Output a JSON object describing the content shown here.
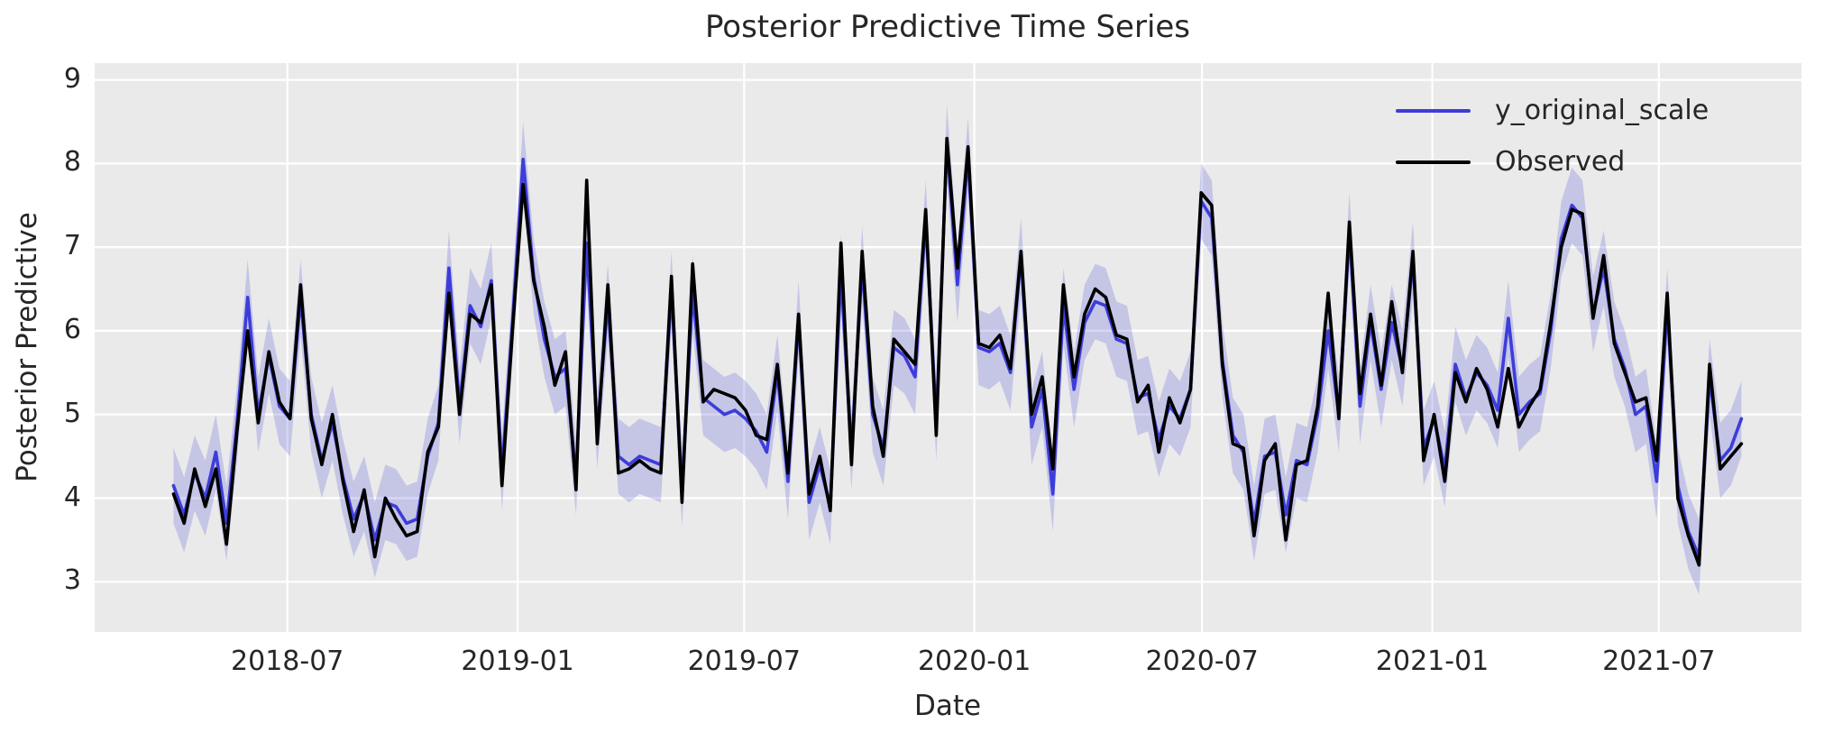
{
  "figure": {
    "title": "Posterior Predictive Time Series"
  },
  "axes": {
    "xlabel": "Date",
    "ylabel": "Posterior Predictive"
  },
  "legend": {
    "position": "upper right",
    "items": [
      {
        "label": "y_original_scale",
        "color": "#3d3dd9"
      },
      {
        "label": "Observed",
        "color": "#000000"
      }
    ]
  },
  "style": {
    "plot_background": "#eaeaea",
    "grid_color": "#ffffff",
    "text_color": "#262626",
    "band_color": "rgba(52, 52, 217, 0.20)",
    "predicted_color": "#3d3dd9",
    "observed_color": "#000000"
  },
  "chart_data": {
    "type": "line",
    "title": "Posterior Predictive Time Series",
    "xlabel": "Date",
    "ylabel": "Posterior Predictive",
    "grid": true,
    "legend_position": "upper right",
    "x_axis_range": [
      "2018-01-28",
      "2021-10-23"
    ],
    "ylim": [
      2.4,
      9.2
    ],
    "yticks": [
      9,
      8,
      7,
      6,
      5,
      4,
      3
    ],
    "xticks": [
      {
        "label": "2018-07",
        "date": "2018-07-01"
      },
      {
        "label": "2019-01",
        "date": "2019-01-01"
      },
      {
        "label": "2019-07",
        "date": "2019-07-01"
      },
      {
        "label": "2020-01",
        "date": "2020-01-01"
      },
      {
        "label": "2020-07",
        "date": "2020-07-01"
      },
      {
        "label": "2021-01",
        "date": "2021-01-01"
      },
      {
        "label": "2021-07",
        "date": "2021-07-01"
      }
    ],
    "x_data_start": "2018-04-01",
    "x_data_end": "2021-09-05",
    "band_halfwidth": 0.45,
    "series": [
      {
        "name": "y_original_scale",
        "color": "#3d3dd9",
        "has_band": true,
        "values": [
          4.15,
          3.8,
          4.3,
          4.0,
          4.55,
          3.7,
          4.9,
          6.4,
          5.0,
          5.7,
          5.1,
          4.95,
          6.4,
          5.0,
          4.45,
          4.9,
          4.25,
          3.75,
          4.05,
          3.5,
          3.95,
          3.9,
          3.7,
          3.75,
          4.5,
          4.9,
          6.75,
          5.1,
          6.3,
          6.05,
          6.6,
          4.3,
          6.1,
          8.05,
          6.65,
          5.9,
          5.45,
          5.55,
          4.25,
          7.05,
          4.8,
          6.35,
          4.5,
          4.4,
          4.5,
          4.45,
          4.4,
          6.5,
          4.1,
          6.45,
          5.2,
          5.1,
          5.0,
          5.05,
          4.95,
          4.8,
          4.55,
          5.5,
          4.2,
          6.15,
          3.95,
          4.4,
          3.9,
          6.7,
          4.55,
          6.8,
          5.0,
          4.6,
          5.8,
          5.7,
          5.45,
          7.35,
          4.9,
          8.25,
          6.55,
          8.1,
          5.8,
          5.75,
          5.85,
          5.5,
          6.9,
          4.85,
          5.3,
          4.05,
          6.3,
          5.3,
          6.1,
          6.35,
          6.3,
          5.9,
          5.85,
          5.2,
          5.25,
          4.7,
          5.1,
          4.95,
          5.3,
          7.55,
          7.35,
          5.65,
          4.75,
          4.55,
          3.7,
          4.5,
          4.55,
          3.8,
          4.45,
          4.4,
          5.0,
          6.0,
          5.0,
          7.2,
          5.1,
          6.1,
          5.3,
          6.1,
          5.55,
          6.85,
          4.6,
          4.95,
          4.35,
          5.6,
          5.2,
          5.5,
          5.35,
          5.05,
          6.15,
          5.0,
          5.15,
          5.25,
          6.0,
          7.1,
          7.5,
          7.35,
          6.2,
          6.75,
          5.9,
          5.55,
          5.0,
          5.1,
          4.2,
          6.3,
          4.15,
          3.6,
          3.3,
          5.45,
          4.45,
          4.6,
          4.95
        ]
      },
      {
        "name": "Observed",
        "color": "#000000",
        "has_band": false,
        "values": [
          4.05,
          3.7,
          4.35,
          3.9,
          4.35,
          3.45,
          4.8,
          6.0,
          4.9,
          5.75,
          5.15,
          4.95,
          6.55,
          4.95,
          4.4,
          5.0,
          4.2,
          3.6,
          4.1,
          3.3,
          4.0,
          3.75,
          3.55,
          3.6,
          4.55,
          4.85,
          6.45,
          5.0,
          6.2,
          6.1,
          6.55,
          4.15,
          6.0,
          7.75,
          6.6,
          6.05,
          5.35,
          5.75,
          4.1,
          7.8,
          4.65,
          6.55,
          4.3,
          4.35,
          4.45,
          4.35,
          4.3,
          6.65,
          3.95,
          6.8,
          5.15,
          5.3,
          5.25,
          5.2,
          5.05,
          4.75,
          4.7,
          5.6,
          4.3,
          6.2,
          4.05,
          4.5,
          3.85,
          7.05,
          4.4,
          6.95,
          5.1,
          4.5,
          5.9,
          5.75,
          5.6,
          7.45,
          4.75,
          8.3,
          6.75,
          8.2,
          5.85,
          5.8,
          5.95,
          5.55,
          6.95,
          5.0,
          5.45,
          4.35,
          6.55,
          5.45,
          6.2,
          6.5,
          6.4,
          5.95,
          5.9,
          5.15,
          5.35,
          4.55,
          5.2,
          4.9,
          5.3,
          7.65,
          7.5,
          5.6,
          4.65,
          4.6,
          3.55,
          4.45,
          4.65,
          3.5,
          4.4,
          4.45,
          5.1,
          6.45,
          4.95,
          7.3,
          5.25,
          6.2,
          5.35,
          6.35,
          5.5,
          6.95,
          4.45,
          5.0,
          4.2,
          5.5,
          5.15,
          5.55,
          5.3,
          4.85,
          5.55,
          4.85,
          5.1,
          5.3,
          6.1,
          7.0,
          7.45,
          7.4,
          6.15,
          6.9,
          5.85,
          5.5,
          5.15,
          5.2,
          4.45,
          6.45,
          4.0,
          3.55,
          3.2,
          5.6,
          4.35,
          4.5,
          4.65
        ]
      }
    ]
  }
}
